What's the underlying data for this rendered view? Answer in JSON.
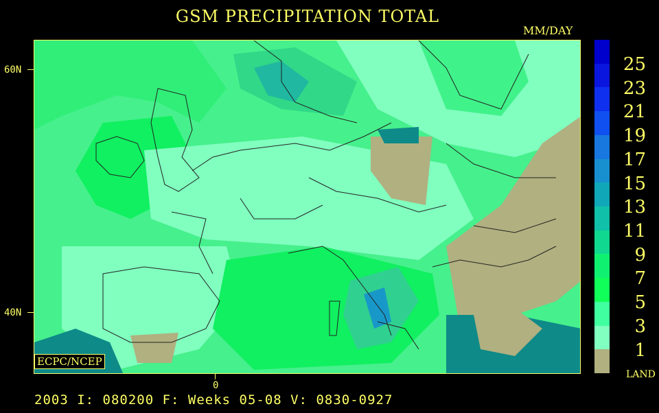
{
  "title": "GSM PRECIPITATION TOTAL",
  "units": "MM/DAY",
  "lat_labels": [
    "60N",
    "40N"
  ],
  "lon_label": "0",
  "credit": "ECPC/NCEP",
  "legend": {
    "levels": [
      "25",
      "23",
      "21",
      "19",
      "17",
      "15",
      "13",
      "11",
      "9",
      "7",
      "5",
      "3",
      "1"
    ],
    "colors": [
      "#0000cc",
      "#0a16dd",
      "#0f30ee",
      "#1050f0",
      "#1878e0",
      "#1890d0",
      "#10a8b8",
      "#10c0a8",
      "#10d890",
      "#10f070",
      "#10ff58",
      "#40ffa0",
      "#80ffc0",
      "#b0b080"
    ],
    "land_label": "LAND"
  },
  "footer": "2003 I: 080200 F: Weeks 05-08 V: 0830-0927"
}
